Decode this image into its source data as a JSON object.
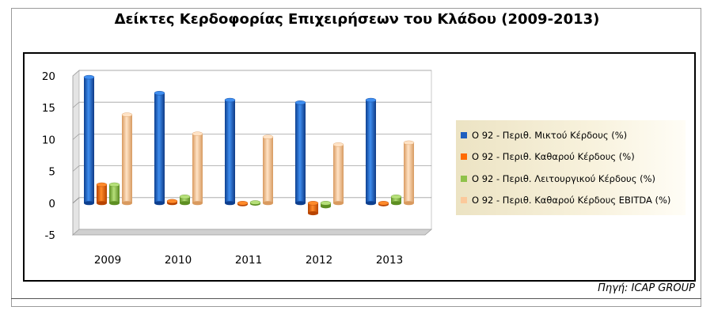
{
  "chart_data": {
    "type": "bar",
    "title": "Δείκτες Κερδοφορίας  Επιχειρήσεων του Κλάδου (2009-2013)",
    "categories": [
      "2009",
      "2010",
      "2011",
      "2012",
      "2013"
    ],
    "ylim": [
      -5,
      20
    ],
    "yticks": [
      20,
      15,
      10,
      5,
      0,
      -5
    ],
    "grid": true,
    "legend_position": "right",
    "series": [
      {
        "name": "Ο 92 - Περιθ. Μικτού Κέρδους (%)",
        "color": "#1f5fbf",
        "values": [
          19.8,
          17.3,
          16.2,
          15.8,
          16.2
        ]
      },
      {
        "name": "Ο 92 - Περιθ. Καθαρού Κέρδους (%)",
        "color": "#ff6a00",
        "values": [
          2.9,
          0.3,
          -0.1,
          -1.6,
          -0.2
        ]
      },
      {
        "name": "Ο 92 - Περιθ. Λειτουργικού Κέρδους (%)",
        "color": "#8fc24a",
        "values": [
          2.9,
          1.0,
          0.1,
          -0.5,
          1.0
        ]
      },
      {
        "name": "Ο 92 - Περιθ. Καθαρού Κέρδους EBITDA (%)",
        "color": "#fbc99b",
        "values": [
          13.9,
          10.9,
          10.4,
          9.2,
          9.5
        ]
      }
    ]
  },
  "source": "Πηγή: ICAP GROUP"
}
